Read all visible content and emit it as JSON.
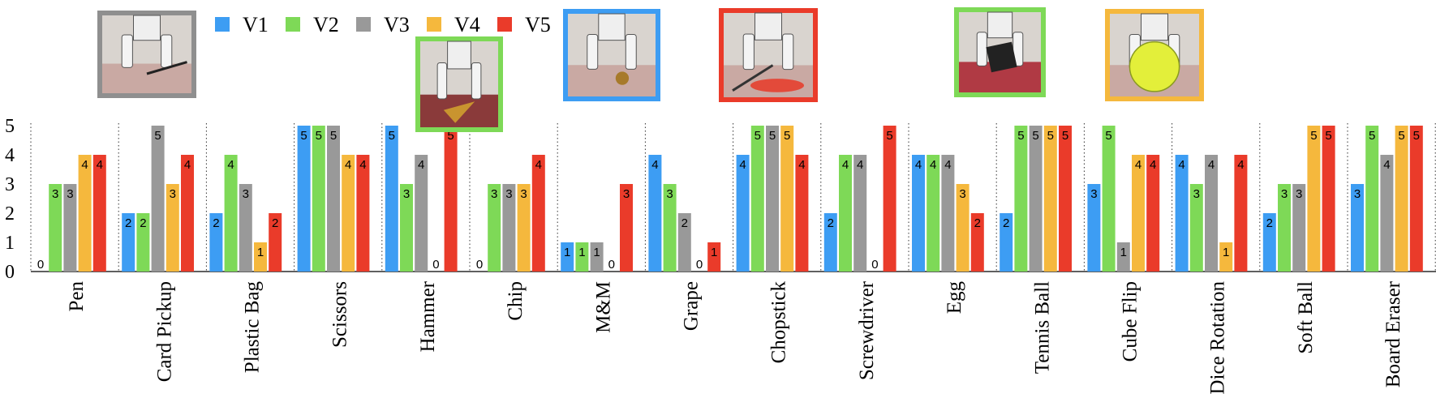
{
  "chart_data": {
    "type": "bar",
    "categories": [
      "Pen",
      "Card Pickup",
      "Plastic Bag",
      "Scissors",
      "Hammer",
      "Chip",
      "M&M",
      "Grape",
      "Chopstick",
      "Screwdriver",
      "Egg",
      "Tennis Ball",
      "Cube Flip",
      "Dice Rotation",
      "Soft Ball",
      "Board Eraser"
    ],
    "series": [
      {
        "name": "V1",
        "color": "#3d9df3",
        "values": [
          0,
          2,
          2,
          5,
          5,
          0,
          1,
          4,
          4,
          2,
          4,
          2,
          3,
          4,
          2,
          3
        ]
      },
      {
        "name": "V2",
        "color": "#7ed957",
        "values": [
          3,
          2,
          4,
          5,
          3,
          3,
          1,
          3,
          5,
          4,
          4,
          5,
          5,
          3,
          3,
          5
        ]
      },
      {
        "name": "V3",
        "color": "#999999",
        "values": [
          3,
          5,
          3,
          5,
          4,
          3,
          1,
          2,
          5,
          4,
          4,
          5,
          1,
          4,
          3,
          4
        ]
      },
      {
        "name": "V4",
        "color": "#f5b83d",
        "values": [
          4,
          3,
          1,
          4,
          0,
          3,
          0,
          0,
          5,
          0,
          3,
          5,
          4,
          1,
          5,
          5
        ]
      },
      {
        "name": "V5",
        "color": "#ea3b2a",
        "values": [
          4,
          4,
          2,
          4,
          5,
          4,
          3,
          1,
          4,
          5,
          2,
          5,
          4,
          4,
          5,
          5
        ]
      }
    ],
    "yticks": [
      "0",
      "1",
      "2",
      "3",
      "4",
      "5"
    ],
    "ylim": [
      0,
      5
    ],
    "legend": "top",
    "grid": false,
    "xlabel": "",
    "ylabel": "",
    "title": ""
  },
  "photos": [
    {
      "name": "photo-pen-grasp",
      "frame_color": "#8f8f8f",
      "subject": "robot hand pinching a pen"
    },
    {
      "name": "photo-chip-grasp",
      "frame_color": "#7ed957",
      "subject": "robot hand holding a chip"
    },
    {
      "name": "photo-mm-grasp",
      "frame_color": "#3d9df3",
      "subject": "gripper fingers picking an M&M"
    },
    {
      "name": "photo-screwdriver-grasp",
      "frame_color": "#ea3b2a",
      "subject": "robot hand using a screwdriver"
    },
    {
      "name": "photo-cube-flip",
      "frame_color": "#7ed957",
      "subject": "robot hand flipping a marker cube"
    },
    {
      "name": "photo-soft-ball-grasp",
      "frame_color": "#f5b83d",
      "subject": "robot hand holding a yellow soft ball"
    }
  ]
}
